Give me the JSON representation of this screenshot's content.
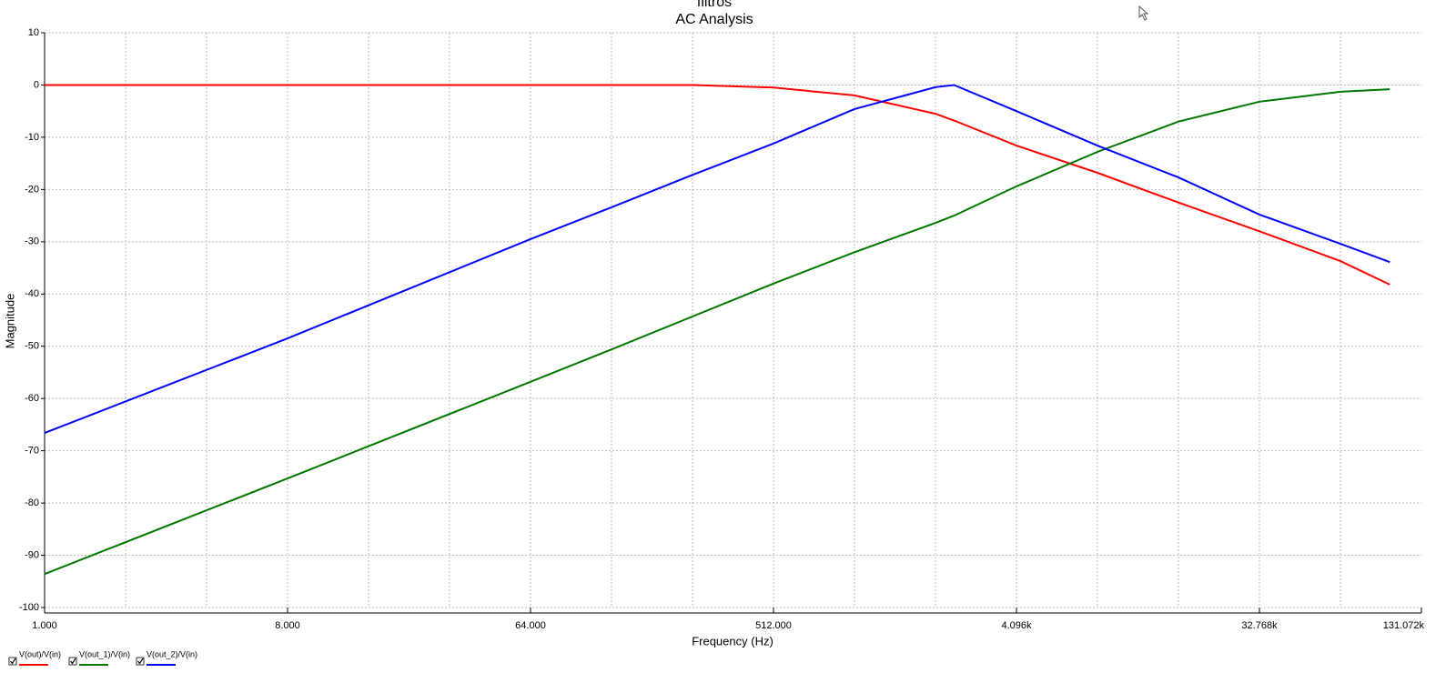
{
  "chart_data": {
    "type": "line",
    "title": "filtros",
    "subtitle": "AC Analysis",
    "x_label": "Frequency (Hz)",
    "y_label": "Magnitude",
    "x_scale": "log",
    "log_base": 2,
    "xlim": [
      1,
      131072
    ],
    "xticks": [
      {
        "value": 1,
        "label": "1.000"
      },
      {
        "value": 8,
        "label": "8.000"
      },
      {
        "value": 64,
        "label": "64.000"
      },
      {
        "value": 512,
        "label": "512.000"
      },
      {
        "value": 4096,
        "label": "4.096k"
      },
      {
        "value": 32768,
        "label": "32.768k"
      },
      {
        "value": 131072,
        "label": "131.072k"
      }
    ],
    "xgrid": [
      2,
      4,
      8,
      16,
      32,
      64,
      128,
      256,
      512,
      1024,
      2048,
      4096,
      8192,
      16384,
      32768,
      65536
    ],
    "ylim": [
      -100,
      10
    ],
    "yticks": [
      -100,
      -90,
      -80,
      -70,
      -60,
      -50,
      -40,
      -30,
      -20,
      -10,
      0,
      10
    ],
    "grid": true,
    "legend": "bottom-left",
    "x": [
      1,
      8,
      64,
      128,
      256,
      512,
      1024,
      2048,
      2400,
      4096,
      8192,
      16384,
      32768,
      65536,
      100000
    ],
    "series": [
      {
        "name": "V(out)/V(in)",
        "color": "#ff0000",
        "values": [
          0,
          0,
          0,
          0,
          0,
          -0.5,
          -2,
          -5.5,
          -6.8,
          -11.6,
          -16.8,
          -22.5,
          -28,
          -33.7,
          -38.2
        ]
      },
      {
        "name": "V(out_1)/V(in)",
        "color": "#007800",
        "values": [
          -93.6,
          -75.3,
          -56.8,
          -50.6,
          -44.3,
          -38,
          -32,
          -26.4,
          -25,
          -19.4,
          -12.8,
          -7,
          -3.2,
          -1.3,
          -0.8
        ]
      },
      {
        "name": "V(out_2)/V(in)",
        "color": "#0000ff",
        "values": [
          -66.6,
          -48.5,
          -29.5,
          -23.4,
          -17.2,
          -11.2,
          -4.6,
          -0.4,
          0,
          -5,
          -11.6,
          -17.7,
          -24.8,
          -30.4,
          -33.9
        ]
      }
    ]
  }
}
